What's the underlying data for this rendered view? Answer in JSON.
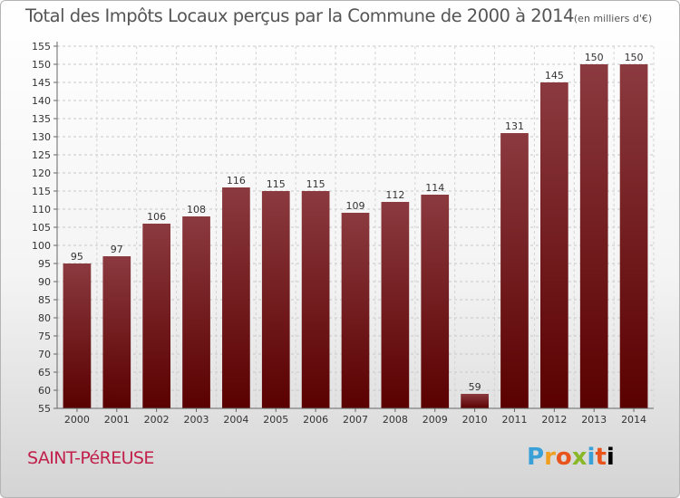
{
  "header": {
    "title": "Total des Impôts Locaux perçus par la Commune de 2000 à 2014",
    "unit": "(en milliers d'€)"
  },
  "footer": {
    "commune": "SAINT-PéREUSE",
    "brand": "Proxiti",
    "brand_letters": [
      "P",
      "r",
      "o",
      "x",
      "i",
      "t",
      "i"
    ]
  },
  "colors": {
    "bar_top": "#8b3a3f",
    "bar_bottom": "#5a0000",
    "title": "#555555",
    "commune": "#c0204a"
  },
  "chart_data": {
    "type": "bar",
    "title": "Total des Impôts Locaux perçus par la Commune de 2000 à 2014",
    "subtitle": "(en milliers d'€)",
    "xlabel": "",
    "ylabel": "",
    "categories": [
      "2000",
      "2001",
      "2002",
      "2003",
      "2004",
      "2005",
      "2006",
      "2007",
      "2008",
      "2009",
      "2010",
      "2011",
      "2012",
      "2013",
      "2014"
    ],
    "values": [
      95,
      97,
      106,
      108,
      116,
      115,
      115,
      109,
      112,
      114,
      59,
      131,
      145,
      150,
      150
    ],
    "ylim": [
      55,
      155
    ],
    "yticks": [
      55,
      60,
      65,
      70,
      75,
      80,
      85,
      90,
      95,
      100,
      105,
      110,
      115,
      120,
      125,
      130,
      135,
      140,
      145,
      150,
      155
    ],
    "grid": true,
    "legend": "none"
  }
}
